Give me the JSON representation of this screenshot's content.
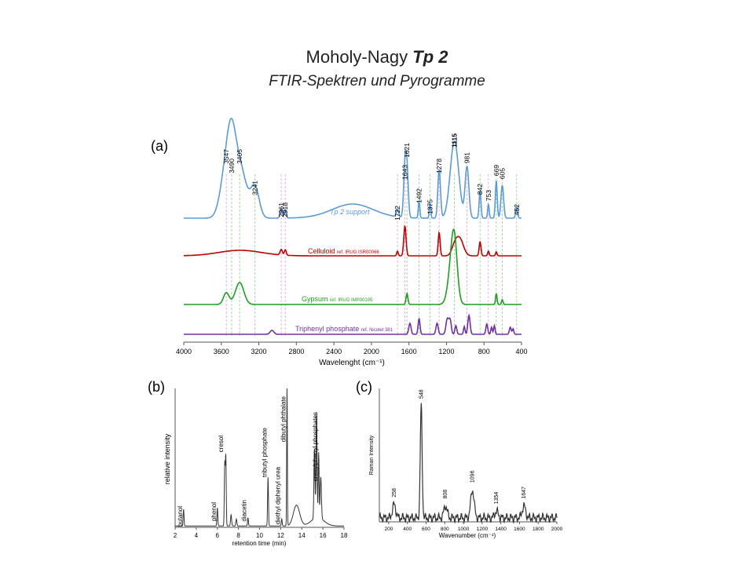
{
  "title": {
    "main": "Moholy-Nagy",
    "bold": "Tp 2",
    "subtitle": "FTIR-Spektren und Pyrogramme"
  },
  "chart_data": [
    {
      "panel": "(a)",
      "type": "line",
      "xlabel": "Wavelenght (cm⁻¹)",
      "xlim": [
        4000,
        400
      ],
      "xticks": [
        "4000",
        "3600",
        "3200",
        "2800",
        "2400",
        "2000",
        "1600",
        "1200",
        "800",
        "400"
      ],
      "series": [
        {
          "name": "Tp 2 support",
          "color": "#5b9bd5",
          "peaks": [
            "3547",
            "3490",
            "3405",
            "3241",
            "2961",
            "2918",
            "1722",
            "1643",
            "1621",
            "1492",
            "1375",
            "1278",
            "1115",
            "981",
            "842",
            "753",
            "669",
            "605",
            "452"
          ]
        },
        {
          "name": "Celluloid",
          "ref": "ref. IRUG ISR00066",
          "color": "#c00000"
        },
        {
          "name": "Gypsum",
          "ref": "ref. IRUG IMP00105",
          "color": "#1e9e1e"
        },
        {
          "name": "Triphenyl phosphate",
          "ref": "ref. Nicolet 381",
          "color": "#7030a0"
        }
      ]
    },
    {
      "panel": "(b)",
      "type": "line",
      "xlabel": "retention time (min)",
      "ylabel": "relative intensity",
      "xlim": [
        2,
        18
      ],
      "xticks": [
        "2",
        "4",
        "6",
        "8",
        "10",
        "12",
        "14",
        "16",
        "18"
      ],
      "peaks": [
        {
          "label": "butanol",
          "x": 2.8,
          "h": 0.12
        },
        {
          "label": "phenol",
          "x": 6.0,
          "h": 0.13
        },
        {
          "label": "cresol",
          "x": 6.7,
          "h": 0.45
        },
        {
          "label": "diacetin",
          "x": 8.9,
          "h": 0.06
        },
        {
          "label": "tributyl phosphate",
          "x": 10.8,
          "h": 0.35
        },
        {
          "label": "diethyl diphenyl urea",
          "x": 12.1,
          "h": 0.05
        },
        {
          "label": "dibutyl phthalate",
          "x": 12.6,
          "h": 0.12
        },
        {
          "label": "cresylphenyl phosphates",
          "x": 15.6,
          "h": 0.47
        }
      ]
    },
    {
      "panel": "(c)",
      "type": "line",
      "xlabel": "Wavenumber (cm⁻¹)",
      "ylabel": "Raman Intensity",
      "xlim": [
        100,
        2000
      ],
      "xticks": [
        "200",
        "400",
        "600",
        "800",
        "1000",
        "1200",
        "1400",
        "1600",
        "1800",
        "2000"
      ],
      "peaks": [
        {
          "label": "258",
          "x": 258,
          "h": 0.1
        },
        {
          "label": "548",
          "x": 548,
          "h": 0.84
        },
        {
          "label": "808",
          "x": 808,
          "h": 0.09
        },
        {
          "label": "1096",
          "x": 1096,
          "h": 0.21
        },
        {
          "label": "1354",
          "x": 1354,
          "h": 0.05
        },
        {
          "label": "1647",
          "x": 1647,
          "h": 0.09
        }
      ]
    }
  ]
}
